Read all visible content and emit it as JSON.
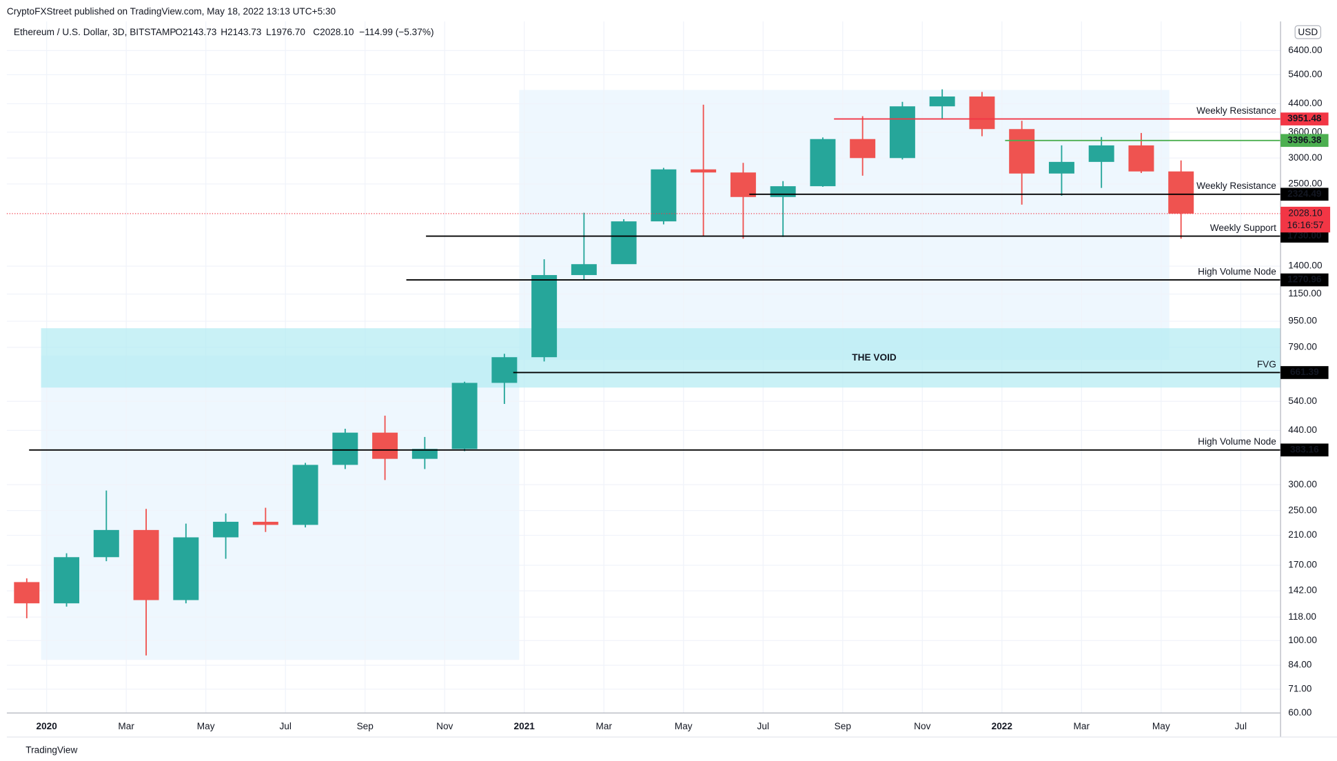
{
  "chart_data": {
    "type": "candlestick",
    "publisher": "CryptoFXStreet published on TradingView.com, May 18, 2022 13:13 UTC+5:30",
    "title": "Ethereum / U.S. Dollar, 3D, BITSTAMP",
    "legend_values": [
      "O2143.73",
      "H2143.73",
      "L1976.70",
      "C2028.10",
      "−114.99 (−5.37%)"
    ],
    "currency": "USD",
    "watermark": "TradingView",
    "x": [
      "2019-12",
      "2020-01",
      "2020-02",
      "2020-03",
      "2020-04",
      "2020-05",
      "2020-06",
      "2020-07",
      "2020-08",
      "2020-09",
      "2020-10",
      "2020-11",
      "2020-12",
      "2021-01",
      "2021-02",
      "2021-03",
      "2021-04",
      "2021-05",
      "2021-06",
      "2021-07",
      "2021-08",
      "2021-09",
      "2021-10",
      "2021-11",
      "2021-12",
      "2022-01",
      "2022-02",
      "2022-03",
      "2022-04",
      "2022-05"
    ],
    "open": [
      151,
      130,
      180,
      218,
      133,
      207,
      231,
      226,
      345,
      433,
      360,
      386,
      615,
      737,
      1315,
      1420,
      1920,
      2770,
      2710,
      2280,
      2460,
      3430,
      3000,
      4320,
      4630,
      3680,
      2690,
      2920,
      3280,
      2730
    ],
    "high": [
      155,
      185,
      288,
      253,
      228,
      245,
      255,
      350,
      445,
      488,
      420,
      620,
      755,
      1470,
      2040,
      1950,
      2800,
      4370,
      2900,
      2550,
      3470,
      4030,
      4460,
      4870,
      4780,
      3900,
      3280,
      3480,
      3580,
      2950
    ],
    "low": [
      117,
      127,
      175,
      90,
      130,
      178,
      215,
      222,
      335,
      310,
      335,
      380,
      530,
      715,
      1270,
      1440,
      1880,
      1730,
      1700,
      1720,
      2450,
      2650,
      2970,
      3950,
      3500,
      2160,
      2300,
      2430,
      2700,
      1700
    ],
    "close": [
      130,
      180,
      218,
      133,
      207,
      231,
      226,
      345,
      433,
      360,
      386,
      615,
      737,
      1315,
      1420,
      1920,
      2770,
      2710,
      2280,
      2460,
      3430,
      3000,
      4320,
      4630,
      3680,
      2690,
      2920,
      3280,
      2730,
      2028.1
    ],
    "up_color": "#26a69a",
    "down_color": "#ef5350",
    "log_scale": true,
    "grid": true,
    "xlim": [
      "2019-12",
      "2022-08"
    ],
    "xticks": [
      {
        "value": "2020-01",
        "label": "2020"
      },
      {
        "value": "2020-03",
        "label": "Mar"
      },
      {
        "value": "2020-05",
        "label": "May"
      },
      {
        "value": "2020-07",
        "label": "Jul"
      },
      {
        "value": "2020-09",
        "label": "Sep"
      },
      {
        "value": "2020-11",
        "label": "Nov"
      },
      {
        "value": "2021-01",
        "label": "2021"
      },
      {
        "value": "2021-03",
        "label": "Mar"
      },
      {
        "value": "2021-05",
        "label": "May"
      },
      {
        "value": "2021-07",
        "label": "Jul"
      },
      {
        "value": "2021-09",
        "label": "Sep"
      },
      {
        "value": "2021-11",
        "label": "Nov"
      },
      {
        "value": "2022-01",
        "label": "2022"
      },
      {
        "value": "2022-03",
        "label": "Mar"
      },
      {
        "value": "2022-05",
        "label": "May"
      },
      {
        "value": "2022-07",
        "label": "Jul"
      }
    ],
    "ylim": [
      60,
      7860
    ],
    "yticks": [
      {
        "value": 6400,
        "label": "6400.00"
      },
      {
        "value": 5400,
        "label": "5400.00"
      },
      {
        "value": 4400,
        "label": "4400.00"
      },
      {
        "value": 3600,
        "label": "3600.00"
      },
      {
        "value": 3000,
        "label": "3000.00"
      },
      {
        "value": 2500,
        "label": "2500.00"
      },
      {
        "value": 1400,
        "label": "1400.00"
      },
      {
        "value": 1150,
        "label": "1150.00"
      },
      {
        "value": 950,
        "label": "950.00"
      },
      {
        "value": 790,
        "label": "790.00"
      },
      {
        "value": 540,
        "label": "540.00"
      },
      {
        "value": 440,
        "label": "440.00"
      },
      {
        "value": 300,
        "label": "300.00"
      },
      {
        "value": 250,
        "label": "250.00"
      },
      {
        "value": 210,
        "label": "210.00"
      },
      {
        "value": 170,
        "label": "170.00"
      },
      {
        "value": 142,
        "label": "142.00"
      },
      {
        "value": 118,
        "label": "118.00"
      },
      {
        "value": 100,
        "label": "100.00"
      },
      {
        "value": 84,
        "label": "84.00"
      },
      {
        "value": 71,
        "label": "71.00"
      },
      {
        "value": 60,
        "label": "60.00"
      }
    ],
    "levels": [
      {
        "value": 3951.48,
        "label": "3951.48",
        "text": "Weekly Resistance",
        "color": "#f23645"
      },
      {
        "value": 3396.38,
        "label": "3396.38",
        "color": "#4caf50"
      },
      {
        "value": 2324.49,
        "label": "2324.49",
        "text": "Weekly Resistance",
        "color": "#000000"
      },
      {
        "value": 1730,
        "label": "1730.00",
        "text": "Weekly Support",
        "color": "#000000"
      },
      {
        "value": 1270.96,
        "label": "1270.96",
        "text": "High Volume Node",
        "color": "#000000"
      },
      {
        "value": 661.39,
        "label": "661.39",
        "text": "FVG",
        "color": "#000000",
        "text_color": "#2962ff"
      },
      {
        "value": 383.16,
        "label": "383.16",
        "text": "High Volume Node",
        "color": "#000000"
      }
    ],
    "last_price": {
      "value": 2028.1,
      "label": "2028.10",
      "countdown": "16:16:57",
      "color": "#f23645"
    },
    "void": {
      "text": "THE VOID",
      "range": [
        595,
        904
      ],
      "color": "#9c27b0"
    }
  }
}
